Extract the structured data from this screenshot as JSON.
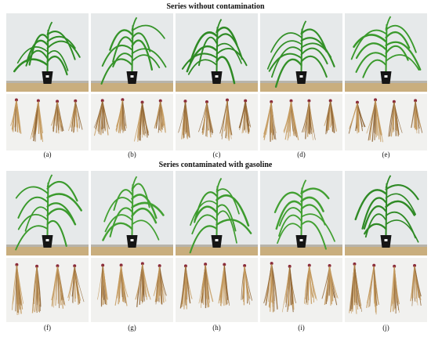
{
  "figure": {
    "series_without": {
      "title": "Series without contamination",
      "panels": [
        {
          "label": "(a)",
          "leaf_color": "#2f8d25"
        },
        {
          "label": "(b)",
          "leaf_color": "#36942a"
        },
        {
          "label": "(c)",
          "leaf_color": "#2e8a24"
        },
        {
          "label": "(d)",
          "leaf_color": "#339028"
        },
        {
          "label": "(e)",
          "leaf_color": "#3a9a2c"
        }
      ]
    },
    "series_contaminated": {
      "title": "Series contaminated with gasoline",
      "panels": [
        {
          "label": "(f)",
          "leaf_color": "#3a9a2c"
        },
        {
          "label": "(g)",
          "leaf_color": "#43a133"
        },
        {
          "label": "(h)",
          "leaf_color": "#3d9b2e"
        },
        {
          "label": "(i)",
          "leaf_color": "#42a032"
        },
        {
          "label": "(j)",
          "leaf_color": "#2f8a25"
        }
      ]
    },
    "colors": {
      "wall": "#e6e9ea",
      "shelf": "#c9ae7e",
      "pot": "#151515",
      "root_bg": "#f1f1ef",
      "root": "#c49a5e",
      "root_dark": "#8e6434",
      "root_tip": "#8a2a3a"
    }
  }
}
